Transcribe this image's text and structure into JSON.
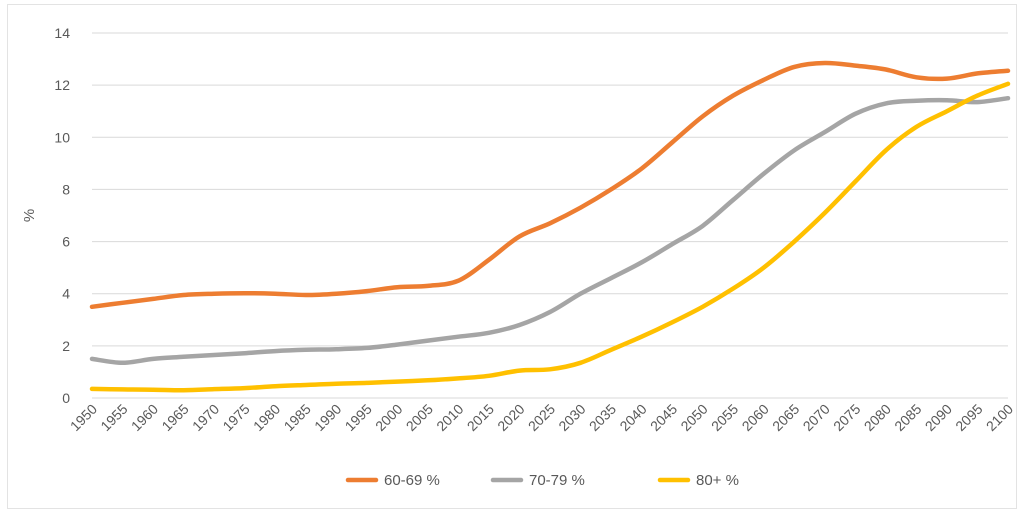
{
  "chart_data": {
    "type": "line",
    "title": "",
    "xlabel": "",
    "ylabel": "%",
    "ylim": [
      0,
      14
    ],
    "yticks": [
      0,
      2,
      4,
      6,
      8,
      10,
      12,
      14
    ],
    "grid": true,
    "legend_position": "bottom",
    "x": [
      1950,
      1955,
      1960,
      1965,
      1970,
      1975,
      1980,
      1985,
      1990,
      1995,
      2000,
      2005,
      2010,
      2015,
      2020,
      2025,
      2030,
      2035,
      2040,
      2045,
      2050,
      2055,
      2060,
      2065,
      2070,
      2075,
      2080,
      2085,
      2090,
      2095,
      2100
    ],
    "series": [
      {
        "name": "60-69 %",
        "color": "#ED7D31",
        "values": [
          3.5,
          3.65,
          3.8,
          3.95,
          4.0,
          4.02,
          4.0,
          3.95,
          4.0,
          4.1,
          4.25,
          4.3,
          4.5,
          5.3,
          6.2,
          6.7,
          7.3,
          8.0,
          8.8,
          9.8,
          10.8,
          11.6,
          12.2,
          12.7,
          12.85,
          12.75,
          12.6,
          12.3,
          12.25,
          12.45,
          12.55
        ]
      },
      {
        "name": "70-79 %",
        "color": "#A5A5A5",
        "values": [
          1.5,
          1.35,
          1.5,
          1.58,
          1.65,
          1.72,
          1.8,
          1.85,
          1.87,
          1.92,
          2.05,
          2.2,
          2.35,
          2.5,
          2.8,
          3.3,
          4.0,
          4.6,
          5.2,
          5.9,
          6.6,
          7.6,
          8.6,
          9.5,
          10.2,
          10.9,
          11.3,
          11.4,
          11.42,
          11.35,
          11.5
        ]
      },
      {
        "name": "80+ %",
        "color": "#FFC000",
        "values": [
          0.35,
          0.33,
          0.32,
          0.3,
          0.34,
          0.38,
          0.45,
          0.5,
          0.55,
          0.58,
          0.63,
          0.68,
          0.75,
          0.85,
          1.05,
          1.1,
          1.35,
          1.85,
          2.35,
          2.9,
          3.5,
          4.2,
          5.0,
          6.0,
          7.1,
          8.3,
          9.5,
          10.4,
          11.0,
          11.6,
          12.05
        ]
      }
    ]
  }
}
